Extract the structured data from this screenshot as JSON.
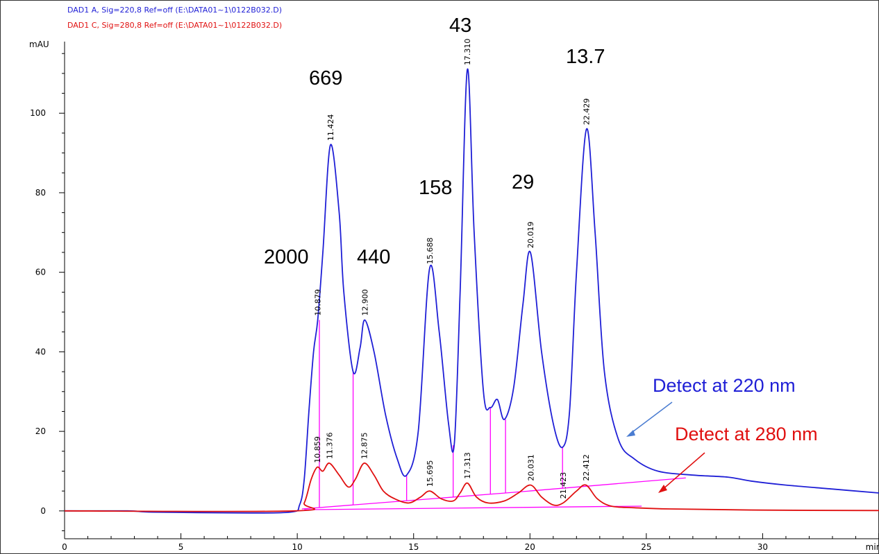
{
  "legend": {
    "line1": "DAD1 A, Sig=220,8 Ref=off (E:\\DATA01~1\\0122B032.D)",
    "line2": "DAD1 C, Sig=280,8 Ref=off (E:\\DATA01~1\\0122B032.D)",
    "color1": "#1f1fd6",
    "color2": "#e01010"
  },
  "annotations": {
    "mw": [
      "2000",
      "669",
      "440",
      "158",
      "43",
      "29",
      "13.7"
    ],
    "detect_220": "Detect at 220 nm",
    "detect_280": "Detect at 280 nm"
  },
  "chart_data": {
    "type": "line",
    "xlabel": "min",
    "ylabel": "mAU",
    "xlim": [
      0,
      35
    ],
    "ylim": [
      -7,
      118
    ],
    "xticks": [
      0,
      5,
      10,
      15,
      20,
      25,
      30
    ],
    "yticks": [
      0,
      20,
      40,
      60,
      80,
      100
    ],
    "baseline_color": "#ff00ff",
    "series": [
      {
        "name": "DAD1 A, Sig=220,8",
        "color": "#1f1fd6",
        "x": [
          0,
          2.7,
          3.8,
          7.3,
          9.7,
          10.1,
          10.3,
          10.5,
          10.7,
          10.879,
          11.1,
          11.424,
          11.8,
          12.0,
          12.4,
          12.7,
          12.9,
          13.3,
          13.8,
          14.3,
          14.7,
          15.2,
          15.688,
          16.1,
          16.5,
          16.75,
          17.0,
          17.31,
          17.6,
          18.0,
          18.3,
          18.6,
          18.9,
          19.3,
          19.7,
          20.019,
          20.5,
          21.0,
          21.4,
          21.7,
          22.0,
          22.429,
          22.8,
          23.2,
          23.8,
          24.5,
          25.5,
          27.0,
          28.5,
          29.5,
          31.0,
          33.0,
          35.0
        ],
        "y": [
          0,
          0,
          -0.3,
          -0.5,
          -0.3,
          1.5,
          8,
          25,
          40,
          48,
          65,
          92,
          75,
          55,
          35,
          41,
          48,
          40,
          24,
          13,
          9,
          20,
          61,
          45,
          22,
          17,
          55,
          111,
          70,
          30,
          26,
          28,
          23,
          31,
          52,
          65,
          40,
          22,
          16,
          25,
          60,
          96,
          70,
          35,
          18,
          13,
          10,
          9,
          8.5,
          7.5,
          6.5,
          5.5,
          4.5
        ]
      },
      {
        "name": "DAD1 C, Sig=280,8",
        "color": "#e01010",
        "x": [
          0,
          9.9,
          10.3,
          10.6,
          10.859,
          11.1,
          11.376,
          11.8,
          12.2,
          12.5,
          12.875,
          13.3,
          13.7,
          14.2,
          14.8,
          15.3,
          15.695,
          16.2,
          16.7,
          17.0,
          17.313,
          17.7,
          18.2,
          18.9,
          19.5,
          20.031,
          20.5,
          21.0,
          21.423,
          22.0,
          22.412,
          22.9,
          23.5,
          24.5,
          26.0,
          30.0,
          35.0
        ],
        "y": [
          0,
          0,
          2,
          8,
          11,
          10,
          12,
          9,
          6,
          8,
          12,
          9,
          5,
          3,
          2,
          3.5,
          5,
          3,
          2.5,
          4.5,
          7,
          3.5,
          2,
          2.5,
          4.5,
          6.5,
          3.5,
          1.5,
          2,
          5,
          6.5,
          3,
          1.2,
          0.8,
          0.5,
          0.2,
          0.1
        ]
      }
    ],
    "peak_labels_220": [
      {
        "x": 10.879,
        "y": 48,
        "label": "10.879"
      },
      {
        "x": 11.424,
        "y": 92,
        "label": "11.424"
      },
      {
        "x": 12.9,
        "y": 48,
        "label": "12.900"
      },
      {
        "x": 15.688,
        "y": 61,
        "label": "15.688"
      },
      {
        "x": 17.31,
        "y": 111,
        "label": "17.310"
      },
      {
        "x": 20.019,
        "y": 65,
        "label": "20.019"
      },
      {
        "x": 22.429,
        "y": 96,
        "label": "22.429"
      }
    ],
    "peak_labels_280": [
      {
        "x": 10.859,
        "y": 11,
        "label": "10.859"
      },
      {
        "x": 11.376,
        "y": 12,
        "label": "11.376"
      },
      {
        "x": 12.875,
        "y": 12,
        "label": "12.875"
      },
      {
        "x": 15.695,
        "y": 5,
        "label": "15.695"
      },
      {
        "x": 17.313,
        "y": 7,
        "label": "17.313"
      },
      {
        "x": 20.031,
        "y": 6.5,
        "label": "20.031"
      },
      {
        "x": 21.423,
        "y": 2,
        "label": "21.423"
      },
      {
        "x": 22.412,
        "y": 6.5,
        "label": "22.412"
      }
    ],
    "integration_drops_220": [
      {
        "x": 10.95,
        "y": 48
      },
      {
        "x": 12.4,
        "y": 35
      },
      {
        "x": 14.7,
        "y": 9
      },
      {
        "x": 16.7,
        "y": 16.5
      },
      {
        "x": 18.3,
        "y": 26
      },
      {
        "x": 18.95,
        "y": 23
      },
      {
        "x": 21.4,
        "y": 16
      }
    ],
    "baselines_220": [
      {
        "x1": 10.2,
        "y1": 0.5,
        "x2": 18.95,
        "y2": 4.5
      },
      {
        "x1": 18.95,
        "y1": 4.5,
        "x2": 26.7,
        "y2": 8.3
      }
    ],
    "baselines_280": [
      {
        "x1": 10.3,
        "y1": 0.3,
        "x2": 24.8,
        "y2": 1.2
      }
    ]
  }
}
